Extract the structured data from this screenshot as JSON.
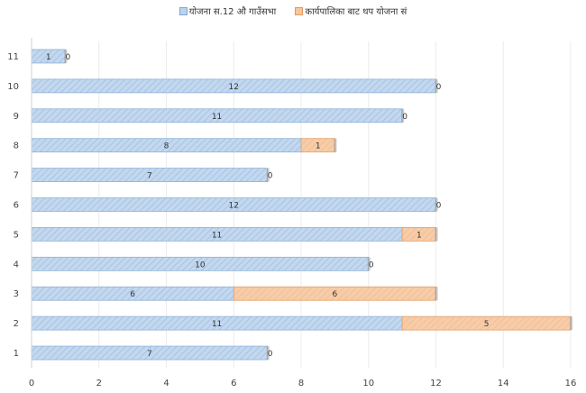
{
  "chart_data": {
    "type": "bar",
    "orientation": "horizontal",
    "stacked": true,
    "categories": [
      "1",
      "2",
      "3",
      "4",
      "5",
      "6",
      "7",
      "8",
      "9",
      "10",
      "11"
    ],
    "series": [
      {
        "name": "योजना स.12 औ गाउँसभा",
        "values": [
          7,
          11,
          6,
          10,
          11,
          12,
          7,
          8,
          11,
          12,
          1
        ],
        "color": "#bcd3ec"
      },
      {
        "name": "कार्यपालिका बाट थप योजना सं",
        "values": [
          0,
          5,
          6,
          0,
          1,
          0,
          0,
          1,
          0,
          0,
          0
        ],
        "color": "#f5c7a0"
      }
    ],
    "x_ticks": [
      "0",
      "2",
      "4",
      "6",
      "8",
      "10",
      "12",
      "14",
      "16"
    ],
    "xlim": [
      0,
      16
    ],
    "grid": true,
    "legend_position": "top",
    "data_labels": true
  }
}
